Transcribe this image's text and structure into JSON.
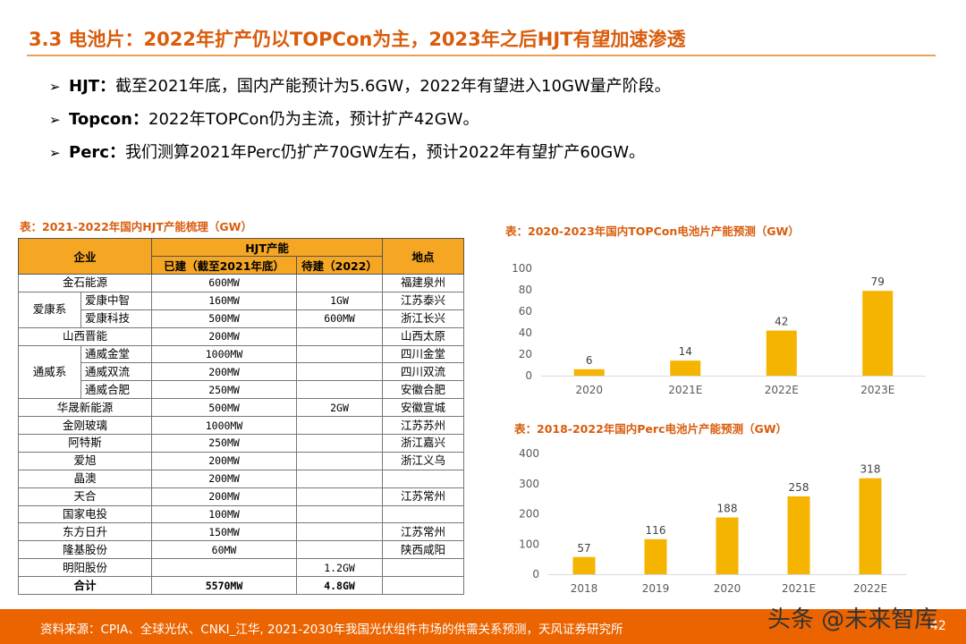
{
  "header": {
    "title": "3.3 电池片：2022年扩产仍以TOPCon为主，2023年之后HJT有望加速渗透"
  },
  "bullets": [
    {
      "mark": "➢",
      "key": "HJT：",
      "text": "截至2021年底，国内产能预计为5.6GW，2022年有望进入10GW量产阶段。"
    },
    {
      "mark": "➢",
      "key": "Topcon：",
      "text": "2022年TOPCon仍为主流，预计扩产42GW。"
    },
    {
      "mark": "➢",
      "key": "Perc：",
      "text": "我们测算2021年Perc仍扩产70GW左右，预计2022年有望扩产60GW。"
    }
  ],
  "table": {
    "caption": "表：2021-2022年国内HJT产能梳理（GW）",
    "headers": {
      "company": "企业",
      "capacity": "HJT产能",
      "built": "已建（截至2021年底）",
      "pending": "待建（2022）",
      "location": "地点"
    },
    "rows": [
      {
        "group": "",
        "company": "金石能源",
        "built": "600MW",
        "pending": "",
        "location": "福建泉州"
      },
      {
        "group": "爱康系",
        "company": "爱康中智",
        "built": "160MW",
        "pending": "1GW",
        "location": "江苏泰兴"
      },
      {
        "group": "爱康系",
        "company": "爱康科技",
        "built": "500MW",
        "pending": "600MW",
        "location": "浙江长兴"
      },
      {
        "group": "",
        "company": "山西晋能",
        "built": "200MW",
        "pending": "",
        "location": "山西太原"
      },
      {
        "group": "通威系",
        "company": "通威金堂",
        "built": "1000MW",
        "pending": "",
        "location": "四川金堂"
      },
      {
        "group": "通威系",
        "company": "通威双流",
        "built": "200MW",
        "pending": "",
        "location": "四川双流"
      },
      {
        "group": "通威系",
        "company": "通威合肥",
        "built": "250MW",
        "pending": "",
        "location": "安徽合肥"
      },
      {
        "group": "",
        "company": "华晟新能源",
        "built": "500MW",
        "pending": "2GW",
        "location": "安徽宣城"
      },
      {
        "group": "",
        "company": "金刚玻璃",
        "built": "1000MW",
        "pending": "",
        "location": "江苏苏州"
      },
      {
        "group": "",
        "company": "阿特斯",
        "built": "250MW",
        "pending": "",
        "location": "浙江嘉兴"
      },
      {
        "group": "",
        "company": "爱旭",
        "built": "200MW",
        "pending": "",
        "location": "浙江义乌"
      },
      {
        "group": "",
        "company": "晶澳",
        "built": "200MW",
        "pending": "",
        "location": ""
      },
      {
        "group": "",
        "company": "天合",
        "built": "200MW",
        "pending": "",
        "location": "江苏常州"
      },
      {
        "group": "",
        "company": "国家电投",
        "built": "100MW",
        "pending": "",
        "location": ""
      },
      {
        "group": "",
        "company": "东方日升",
        "built": "150MW",
        "pending": "",
        "location": "江苏常州"
      },
      {
        "group": "",
        "company": "隆基股份",
        "built": "60MW",
        "pending": "",
        "location": "陕西咸阳"
      },
      {
        "group": "",
        "company": "明阳股份",
        "built": "",
        "pending": "1.2GW",
        "location": ""
      }
    ],
    "total": {
      "label": "合计",
      "built": "5570MW",
      "pending": "4.8GW",
      "location": ""
    }
  },
  "chart_data": [
    {
      "type": "bar",
      "title": "表：2020-2023年国内TOPCon电池片产能预测（GW）",
      "categories": [
        "2020",
        "2021E",
        "2022E",
        "2023E"
      ],
      "values": [
        6,
        14,
        42,
        79
      ],
      "ylim": [
        0,
        100
      ],
      "yticks": [
        0,
        20,
        40,
        60,
        80,
        100
      ],
      "color": "#f5b400",
      "grid": false
    },
    {
      "type": "bar",
      "title": "表：2018-2022年国内Perc电池片产能预测（GW）",
      "categories": [
        "2018",
        "2019",
        "2020",
        "2021E",
        "2022E"
      ],
      "values": [
        57,
        116,
        188,
        258,
        318
      ],
      "ylim": [
        0,
        400
      ],
      "yticks": [
        0,
        100,
        200,
        300,
        400
      ],
      "color": "#f5b400",
      "grid": false
    }
  ],
  "footer": {
    "source": "资料来源：CPIA、全球光伏、CNKI_江华, 2021-2030年我国光伏组件市场的供需关系预测，天风证券研究所",
    "page": "42",
    "watermark": "头条 @未来智库"
  },
  "colors": {
    "accent": "#d95c0c",
    "footer": "#ec6400",
    "table_header": "#f5a623",
    "bar": "#f5b400"
  }
}
